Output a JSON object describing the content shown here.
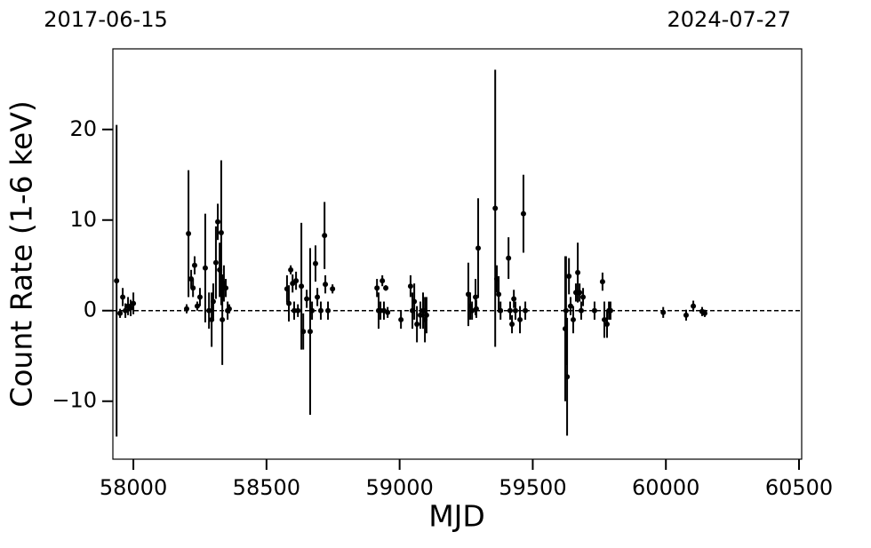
{
  "chart_data": {
    "type": "errorbar-scatter",
    "x_label": "MJD",
    "y_label": "Count Rate (1-6 keV)",
    "xlim": [
      57923,
      60510
    ],
    "ylim": [
      -16.4,
      28.9
    ],
    "xticks": [
      58000,
      58500,
      59000,
      59500,
      60000,
      60500
    ],
    "yticks": [
      {
        "value": -10,
        "label": "−10"
      },
      0,
      10,
      20
    ],
    "x2ticks": [
      {
        "value": 57923,
        "label": "2017-06-15"
      },
      {
        "value": 60510,
        "label": "2024-07-27"
      }
    ],
    "hline": 0,
    "series": [
      {
        "color": "#000000",
        "x": [
          57937,
          57950,
          57960,
          57970,
          57980,
          57990,
          58000,
          58200,
          58207,
          58217,
          58224,
          58230,
          58240,
          58250,
          58270,
          58284,
          58294,
          58300,
          58310,
          58317,
          58324,
          58330,
          58334,
          58340,
          58347,
          58354,
          58360,
          58577,
          58584,
          58591,
          58598,
          58604,
          58611,
          58618,
          58631,
          58638,
          58651,
          58664,
          58671,
          58684,
          58691,
          58704,
          58718,
          58721,
          58731,
          58748,
          58915,
          58921,
          58928,
          58935,
          58941,
          58948,
          58955,
          59005,
          59041,
          59048,
          59055,
          59065,
          59078,
          59088,
          59095,
          59101,
          59258,
          59265,
          59272,
          59285,
          59288,
          59295,
          59359,
          59365,
          59372,
          59379,
          59409,
          59415,
          59422,
          59429,
          59435,
          59452,
          59465,
          59472,
          59622,
          59625,
          59629,
          59636,
          59642,
          59652,
          59662,
          59669,
          59676,
          59682,
          59689,
          59732,
          59762,
          59769,
          59779,
          59786,
          59792,
          59990,
          60076,
          60103,
          60136,
          60146
        ],
        "values": [
          3.3,
          -0.3,
          1.5,
          0,
          0.5,
          0.3,
          0.8,
          0.2,
          8.5,
          3.5,
          2.5,
          5,
          0.5,
          1.5,
          4.7,
          0,
          -1,
          1,
          5.3,
          9.8,
          4.5,
          8.6,
          -1,
          3,
          2.5,
          0,
          0.2,
          2.4,
          0.8,
          4.5,
          3,
          0,
          3.3,
          0,
          2.7,
          -2.3,
          1.3,
          -2.3,
          0,
          5.2,
          1.5,
          0,
          8.3,
          2.9,
          0,
          2.4,
          2.5,
          0,
          0,
          3.3,
          0,
          2.5,
          -0.2,
          -1,
          2.7,
          0,
          1,
          -1.5,
          -0.5,
          0,
          -1,
          -0.5,
          1.8,
          0.5,
          0,
          1.5,
          0.2,
          6.9,
          11.3,
          3.5,
          1.8,
          0,
          5.8,
          0,
          -1.5,
          1.3,
          0,
          -1,
          10.7,
          0,
          -2,
          0,
          -7.3,
          3.8,
          0.5,
          -1,
          2,
          4.2,
          2,
          0,
          1.5,
          0,
          3.2,
          -1,
          -1.5,
          0,
          0,
          -0.2,
          -0.5,
          0.5,
          -0.1,
          -0.3
        ],
        "errors": [
          17.2,
          0.5,
          1,
          0.8,
          1,
          0.9,
          1.2,
          0.5,
          7,
          1,
          1,
          1,
          0.5,
          1,
          6,
          2,
          3,
          2,
          4,
          2,
          3,
          8,
          5,
          2,
          1,
          1,
          0.5,
          1.5,
          2,
          0.5,
          1,
          1,
          1,
          0.7,
          7,
          2,
          1,
          9.2,
          1,
          2,
          1,
          1,
          3.7,
          1,
          1,
          0.5,
          1,
          2,
          1,
          0.6,
          1,
          0.3,
          0.6,
          1,
          1.2,
          2,
          2,
          2,
          1.5,
          2,
          2.5,
          2,
          3.5,
          1.5,
          1,
          2,
          1,
          5.5,
          15.3,
          1.5,
          2,
          1,
          2.3,
          1,
          1,
          1,
          1,
          1.5,
          4.3,
          1,
          8,
          6,
          6.5,
          2,
          1,
          1.5,
          1,
          3.3,
          1,
          1,
          1,
          1,
          1,
          2,
          1.5,
          1,
          1,
          0.6,
          0.6,
          0.6,
          0.5,
          0.4
        ]
      }
    ]
  }
}
